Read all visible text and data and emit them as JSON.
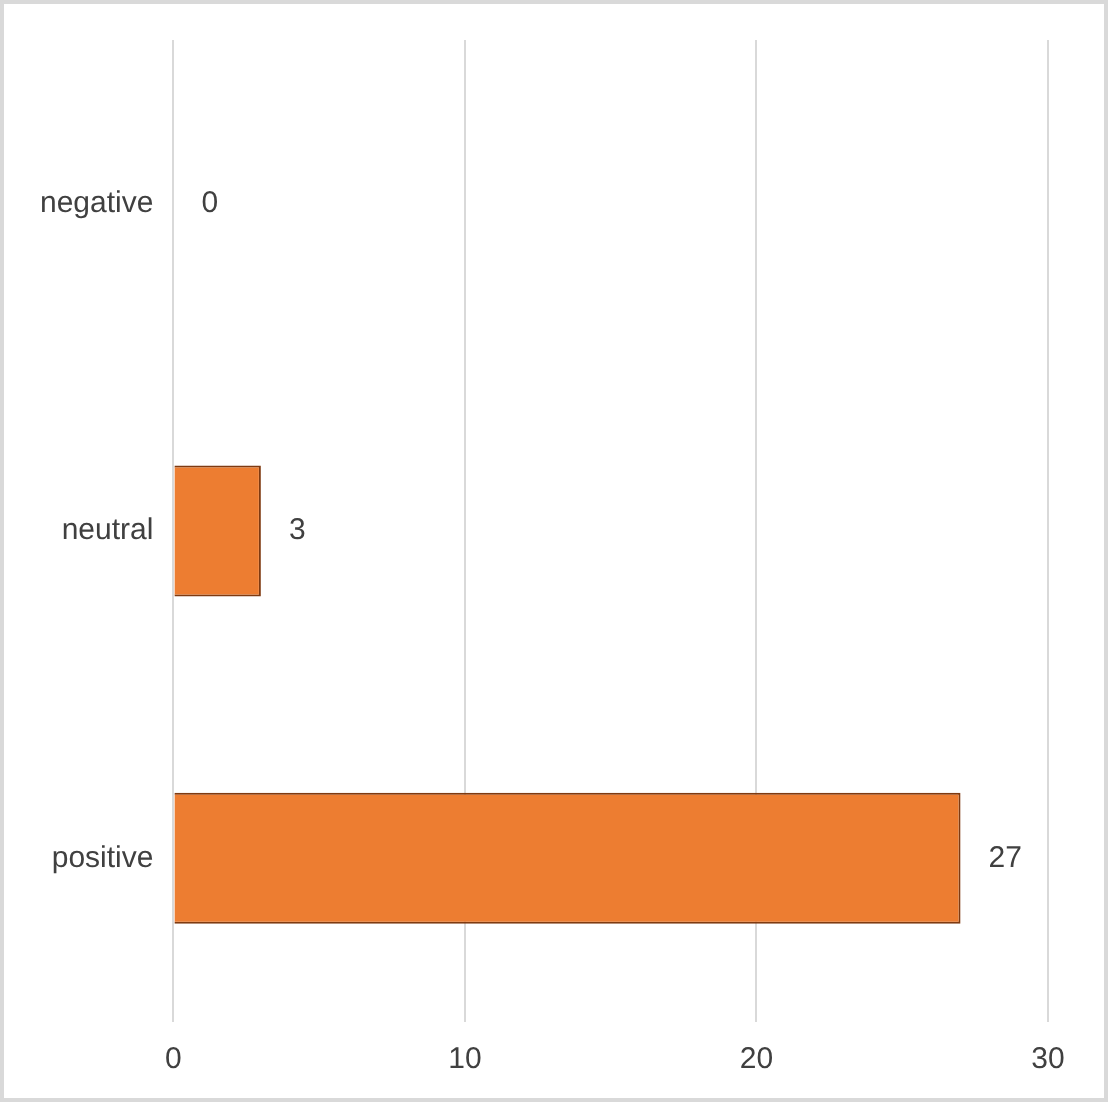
{
  "chart_data": {
    "type": "bar",
    "orientation": "horizontal",
    "categories": [
      "negative",
      "neutral",
      "positive"
    ],
    "values": [
      0,
      3,
      27
    ],
    "color": "#ed7d31",
    "xlim": [
      0,
      30
    ],
    "xticks": [
      0,
      10,
      20,
      30
    ],
    "grid": "x",
    "data_labels": true,
    "legend": false
  }
}
